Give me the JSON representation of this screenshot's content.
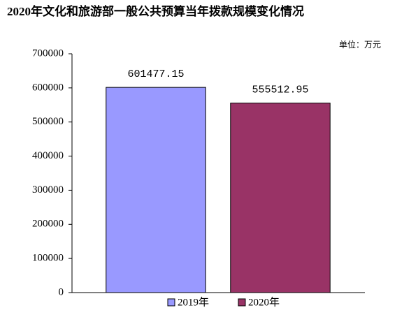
{
  "chart_data": {
    "type": "bar",
    "title": "2020年文化和旅游部一般公共预算当年拨款规模变化情况",
    "unit": "单位：万元",
    "categories": [
      "2019年",
      "2020年"
    ],
    "values": [
      601477.15,
      555512.95
    ],
    "colors": [
      "#9999ff",
      "#993366"
    ],
    "ylim": [
      0,
      700000
    ],
    "yticks": [
      0,
      100000,
      200000,
      300000,
      400000,
      500000,
      600000,
      700000
    ],
    "grid": false,
    "legend": "bottom"
  }
}
